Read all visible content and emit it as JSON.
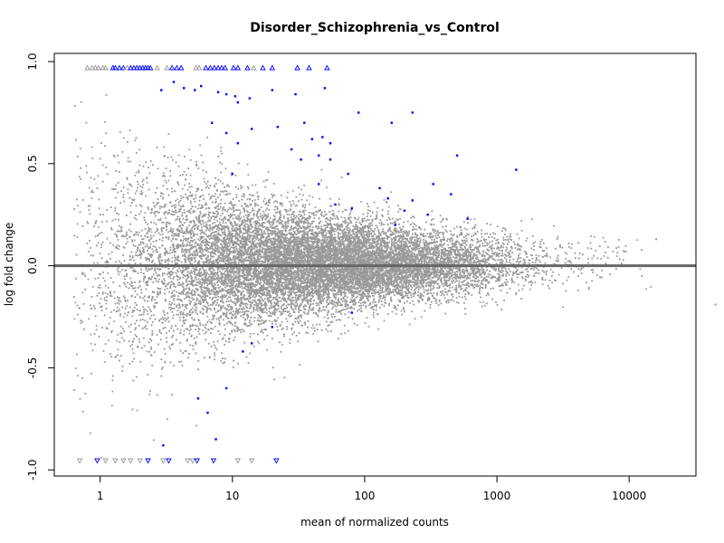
{
  "chart_data": {
    "type": "scatter",
    "title": "Disorder_Schizophrenia_vs_Control",
    "xlabel": "mean of normalized counts",
    "ylabel": "log fold change",
    "x_scale": "log10",
    "xlim": [
      0.45,
      32000
    ],
    "ylim": [
      -1.03,
      1.04
    ],
    "x_ticks": [
      {
        "value": 1,
        "label": "1"
      },
      {
        "value": 10,
        "label": "10"
      },
      {
        "value": 100,
        "label": "100"
      },
      {
        "value": 1000,
        "label": "1000"
      },
      {
        "value": 10000,
        "label": "10000"
      }
    ],
    "y_ticks": [
      {
        "value": -1.0,
        "label": "-1.0"
      },
      {
        "value": -0.5,
        "label": "-0.5"
      },
      {
        "value": 0.0,
        "label": "0.0"
      },
      {
        "value": 0.5,
        "label": "0.5"
      },
      {
        "value": 1.0,
        "label": "1.0"
      }
    ],
    "reference_line": {
      "y": 0,
      "color": "#666666"
    },
    "grid": false,
    "colors": {
      "not_significant": "#999999",
      "significant": "#0000ff",
      "axis": "#000000"
    },
    "series": [
      {
        "points_described_as": "~22000 non-significant genes, dense MA-plot cloud",
        "sample_points": [
          {
            "x": 1.0,
            "y": 0.25
          },
          {
            "x": 2.0,
            "y": -0.1
          },
          {
            "x": 5.0,
            "y": 0.05
          },
          {
            "x": 20.0,
            "y": -0.05
          },
          {
            "x": 100.0,
            "y": 0.02
          },
          {
            "x": 500.0,
            "y": 0.05
          },
          {
            "x": 3000.0,
            "y": 0.1
          },
          {
            "x": 16000.0,
            "y": 0.13
          },
          {
            "x": 45000.0,
            "y": -0.19
          }
        ],
        "color": "#999999",
        "significant": false
      },
      {
        "points": [
          {
            "x": 2.9,
            "y": 0.86
          },
          {
            "x": 3.6,
            "y": 0.9
          },
          {
            "x": 4.3,
            "y": 0.87
          },
          {
            "x": 5.2,
            "y": 0.86
          },
          {
            "x": 5.8,
            "y": 0.88
          },
          {
            "x": 7.8,
            "y": 0.85
          },
          {
            "x": 9.0,
            "y": 0.84
          },
          {
            "x": 10.5,
            "y": 0.83
          },
          {
            "x": 11.0,
            "y": 0.8
          },
          {
            "x": 13.5,
            "y": 0.82
          },
          {
            "x": 20.0,
            "y": 0.86
          },
          {
            "x": 30.0,
            "y": 0.84
          },
          {
            "x": 50.0,
            "y": 0.87
          },
          {
            "x": 90.0,
            "y": 0.75
          },
          {
            "x": 160.0,
            "y": 0.7
          },
          {
            "x": 230.0,
            "y": 0.75
          },
          {
            "x": 7.0,
            "y": 0.7
          },
          {
            "x": 9.0,
            "y": 0.65
          },
          {
            "x": 11.0,
            "y": 0.6
          },
          {
            "x": 14.0,
            "y": 0.67
          },
          {
            "x": 22.0,
            "y": 0.68
          },
          {
            "x": 28.0,
            "y": 0.57
          },
          {
            "x": 35.0,
            "y": 0.7
          },
          {
            "x": 40.0,
            "y": 0.62
          },
          {
            "x": 48.0,
            "y": 0.63
          },
          {
            "x": 55.0,
            "y": 0.6
          },
          {
            "x": 33.0,
            "y": 0.52
          },
          {
            "x": 45.0,
            "y": 0.54
          },
          {
            "x": 55.0,
            "y": 0.52
          },
          {
            "x": 500.0,
            "y": 0.54
          },
          {
            "x": 1400.0,
            "y": 0.47
          },
          {
            "x": 75.0,
            "y": 0.45
          },
          {
            "x": 45.0,
            "y": 0.4
          },
          {
            "x": 130.0,
            "y": 0.38
          },
          {
            "x": 150.0,
            "y": 0.33
          },
          {
            "x": 230.0,
            "y": 0.32
          },
          {
            "x": 330.0,
            "y": 0.4
          },
          {
            "x": 450.0,
            "y": 0.35
          },
          {
            "x": 80.0,
            "y": 0.28
          },
          {
            "x": 200.0,
            "y": 0.27
          },
          {
            "x": 300.0,
            "y": 0.25
          },
          {
            "x": 170.0,
            "y": 0.2
          },
          {
            "x": 600.0,
            "y": 0.23
          },
          {
            "x": 10.0,
            "y": 0.45
          },
          {
            "x": 60.0,
            "y": 0.3
          },
          {
            "x": 20.0,
            "y": -0.3
          },
          {
            "x": 80.0,
            "y": -0.23
          },
          {
            "x": 12.0,
            "y": -0.42
          },
          {
            "x": 14.0,
            "y": -0.38
          },
          {
            "x": 6.5,
            "y": -0.72
          },
          {
            "x": 9.0,
            "y": -0.6
          },
          {
            "x": 7.5,
            "y": -0.85
          },
          {
            "x": 3.0,
            "y": -0.88
          },
          {
            "x": 5.5,
            "y": -0.65
          }
        ],
        "color": "#0000ff",
        "significant": true
      }
    ],
    "clipped_points_top": [
      {
        "x": 0.8,
        "color": "#999999"
      },
      {
        "x": 0.87,
        "color": "#999999"
      },
      {
        "x": 0.92,
        "color": "#999999"
      },
      {
        "x": 0.97,
        "color": "#999999"
      },
      {
        "x": 1.05,
        "color": "#999999"
      },
      {
        "x": 1.1,
        "color": "#999999"
      },
      {
        "x": 1.25,
        "color": "#0000ff"
      },
      {
        "x": 1.3,
        "color": "#0000ff"
      },
      {
        "x": 1.4,
        "color": "#0000ff"
      },
      {
        "x": 1.5,
        "color": "#0000ff"
      },
      {
        "x": 1.6,
        "color": "#999999"
      },
      {
        "x": 1.7,
        "color": "#0000ff"
      },
      {
        "x": 1.8,
        "color": "#0000ff"
      },
      {
        "x": 1.9,
        "color": "#0000ff"
      },
      {
        "x": 2.0,
        "color": "#0000ff"
      },
      {
        "x": 2.1,
        "color": "#0000ff"
      },
      {
        "x": 2.2,
        "color": "#0000ff"
      },
      {
        "x": 2.3,
        "color": "#0000ff"
      },
      {
        "x": 2.4,
        "color": "#0000ff"
      },
      {
        "x": 2.7,
        "color": "#999999"
      },
      {
        "x": 3.2,
        "color": "#999999"
      },
      {
        "x": 3.5,
        "color": "#0000ff"
      },
      {
        "x": 3.8,
        "color": "#0000ff"
      },
      {
        "x": 4.1,
        "color": "#0000ff"
      },
      {
        "x": 5.3,
        "color": "#999999"
      },
      {
        "x": 5.6,
        "color": "#999999"
      },
      {
        "x": 6.3,
        "color": "#0000ff"
      },
      {
        "x": 6.8,
        "color": "#0000ff"
      },
      {
        "x": 7.3,
        "color": "#0000ff"
      },
      {
        "x": 7.8,
        "color": "#0000ff"
      },
      {
        "x": 8.3,
        "color": "#0000ff"
      },
      {
        "x": 8.8,
        "color": "#0000ff"
      },
      {
        "x": 10.2,
        "color": "#0000ff"
      },
      {
        "x": 11.0,
        "color": "#0000ff"
      },
      {
        "x": 13.0,
        "color": "#0000ff"
      },
      {
        "x": 14.5,
        "color": "#999999"
      },
      {
        "x": 17.0,
        "color": "#0000ff"
      },
      {
        "x": 20.0,
        "color": "#0000ff"
      },
      {
        "x": 31.0,
        "color": "#0000ff"
      },
      {
        "x": 38.0,
        "color": "#0000ff"
      },
      {
        "x": 52.0,
        "color": "#0000ff"
      }
    ],
    "clipped_points_bottom": [
      {
        "x": 0.7,
        "color": "#999999"
      },
      {
        "x": 0.95,
        "color": "#0000ff"
      },
      {
        "x": 1.1,
        "color": "#999999"
      },
      {
        "x": 1.3,
        "color": "#999999"
      },
      {
        "x": 1.5,
        "color": "#999999"
      },
      {
        "x": 1.7,
        "color": "#999999"
      },
      {
        "x": 2.0,
        "color": "#999999"
      },
      {
        "x": 2.3,
        "color": "#0000ff"
      },
      {
        "x": 3.0,
        "color": "#999999"
      },
      {
        "x": 3.3,
        "color": "#0000ff"
      },
      {
        "x": 4.6,
        "color": "#999999"
      },
      {
        "x": 5.0,
        "color": "#999999"
      },
      {
        "x": 5.4,
        "color": "#0000ff"
      },
      {
        "x": 7.2,
        "color": "#0000ff"
      },
      {
        "x": 11.0,
        "color": "#999999"
      },
      {
        "x": 14.0,
        "color": "#999999"
      },
      {
        "x": 21.5,
        "color": "#0000ff"
      }
    ]
  }
}
